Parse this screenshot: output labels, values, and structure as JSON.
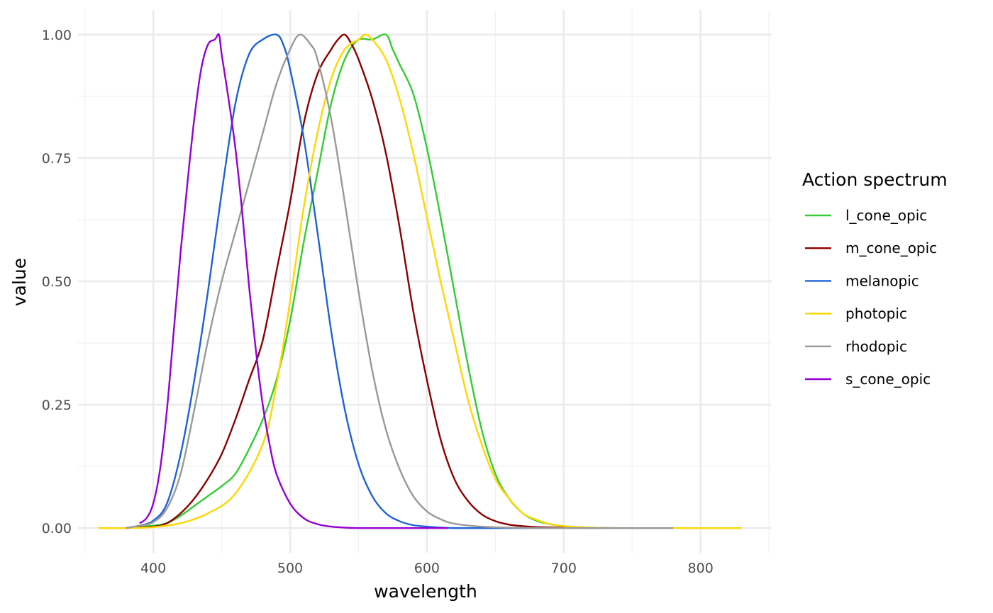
{
  "chart_data": {
    "type": "line",
    "xlabel": "wavelength",
    "ylabel": "value",
    "xlim": [
      345,
      852
    ],
    "ylim": [
      -0.05,
      1.05
    ],
    "x_ticks": [
      400,
      500,
      600,
      700,
      800
    ],
    "x_tick_labels": [
      "400",
      "500",
      "600",
      "700",
      "800"
    ],
    "y_ticks": [
      0,
      0.25,
      0.5,
      0.75,
      1
    ],
    "y_tick_labels": [
      "0.00",
      "0.25",
      "0.50",
      "0.75",
      "1.00"
    ],
    "grid": true,
    "legend": {
      "title": "Action spectrum",
      "position": "right"
    },
    "series": [
      {
        "name": "l_cone_opic",
        "color": "#32cd32",
        "x": [
          380,
          400,
          410,
          420,
          430,
          440,
          450,
          460,
          470,
          480,
          490,
          500,
          510,
          520,
          530,
          540,
          550,
          560,
          570,
          575,
          580,
          590,
          600,
          610,
          620,
          630,
          640,
          650,
          660,
          670,
          680,
          690,
          700,
          720,
          740,
          760,
          780
        ],
        "y": [
          0.0,
          0.005,
          0.01,
          0.025,
          0.045,
          0.065,
          0.085,
          0.11,
          0.16,
          0.22,
          0.3,
          0.42,
          0.58,
          0.72,
          0.86,
          0.95,
          0.99,
          0.99,
          1.0,
          0.97,
          0.94,
          0.88,
          0.77,
          0.63,
          0.48,
          0.33,
          0.2,
          0.11,
          0.06,
          0.03,
          0.015,
          0.008,
          0.004,
          0.001,
          0.0,
          0.0,
          0.0
        ]
      },
      {
        "name": "m_cone_opic",
        "color": "#8b0000",
        "x": [
          380,
          400,
          410,
          420,
          430,
          440,
          450,
          460,
          470,
          480,
          490,
          500,
          510,
          520,
          530,
          535,
          540,
          545,
          550,
          560,
          570,
          580,
          590,
          600,
          610,
          620,
          630,
          640,
          650,
          660,
          670,
          680,
          700,
          720,
          740,
          760,
          780
        ],
        "y": [
          0.0,
          0.003,
          0.01,
          0.03,
          0.06,
          0.1,
          0.15,
          0.22,
          0.3,
          0.38,
          0.52,
          0.66,
          0.82,
          0.92,
          0.97,
          0.99,
          1.0,
          0.98,
          0.95,
          0.87,
          0.76,
          0.61,
          0.44,
          0.3,
          0.18,
          0.1,
          0.055,
          0.028,
          0.014,
          0.007,
          0.004,
          0.002,
          0.001,
          0.0,
          0.0,
          0.0,
          0.0
        ]
      },
      {
        "name": "melanopic",
        "color": "#1f62d6",
        "x": [
          380,
          390,
          400,
          410,
          420,
          430,
          440,
          450,
          460,
          470,
          480,
          490,
          495,
          500,
          510,
          520,
          530,
          540,
          550,
          560,
          570,
          580,
          590,
          600,
          610,
          620,
          640,
          660,
          680,
          700,
          720,
          740,
          760,
          780
        ],
        "y": [
          0.0,
          0.005,
          0.015,
          0.05,
          0.15,
          0.3,
          0.48,
          0.68,
          0.86,
          0.96,
          0.99,
          1.0,
          0.98,
          0.93,
          0.79,
          0.6,
          0.4,
          0.24,
          0.13,
          0.065,
          0.03,
          0.014,
          0.006,
          0.003,
          0.001,
          0.0,
          0.0,
          0.0,
          0.0,
          0.0,
          0.0,
          0.0,
          0.0,
          0.0
        ]
      },
      {
        "name": "photopic",
        "color": "#ffd700",
        "x": [
          360,
          380,
          400,
          420,
          440,
          460,
          480,
          490,
          500,
          510,
          520,
          530,
          540,
          550,
          555,
          560,
          570,
          580,
          590,
          600,
          610,
          620,
          630,
          640,
          650,
          660,
          670,
          680,
          690,
          700,
          720,
          740,
          760,
          780,
          800,
          830
        ],
        "y": [
          0.0,
          0.0,
          0.002,
          0.01,
          0.03,
          0.07,
          0.17,
          0.29,
          0.46,
          0.65,
          0.8,
          0.91,
          0.97,
          0.99,
          1.0,
          0.99,
          0.95,
          0.87,
          0.76,
          0.63,
          0.5,
          0.38,
          0.26,
          0.17,
          0.1,
          0.06,
          0.03,
          0.017,
          0.008,
          0.004,
          0.001,
          0.0,
          0.0,
          0.0,
          0.0,
          0.0
        ]
      },
      {
        "name": "rhodopic",
        "color": "#999999",
        "x": [
          380,
          390,
          400,
          410,
          420,
          430,
          440,
          450,
          460,
          470,
          480,
          490,
          500,
          507,
          515,
          520,
          530,
          540,
          550,
          560,
          570,
          580,
          590,
          600,
          610,
          620,
          640,
          660,
          680,
          700,
          720,
          740,
          760,
          780
        ],
        "y": [
          0.0,
          0.005,
          0.012,
          0.04,
          0.11,
          0.24,
          0.38,
          0.5,
          0.6,
          0.7,
          0.8,
          0.9,
          0.97,
          1.0,
          0.98,
          0.95,
          0.83,
          0.66,
          0.48,
          0.32,
          0.2,
          0.12,
          0.065,
          0.034,
          0.018,
          0.009,
          0.003,
          0.001,
          0.0,
          0.0,
          0.0,
          0.0,
          0.0,
          0.0
        ]
      },
      {
        "name": "s_cone_opic",
        "color": "#9400d3",
        "x": [
          390,
          395,
          400,
          405,
          410,
          415,
          420,
          425,
          430,
          435,
          440,
          445,
          448,
          450,
          455,
          460,
          465,
          470,
          475,
          480,
          485,
          490,
          500,
          510,
          520,
          530,
          540,
          550,
          560,
          580,
          600,
          615
        ],
        "y": [
          0.01,
          0.02,
          0.05,
          0.12,
          0.24,
          0.4,
          0.56,
          0.7,
          0.83,
          0.93,
          0.98,
          0.99,
          1.0,
          0.96,
          0.87,
          0.77,
          0.64,
          0.49,
          0.36,
          0.25,
          0.17,
          0.11,
          0.05,
          0.02,
          0.008,
          0.003,
          0.001,
          0.0,
          0.0,
          0.0,
          0.0,
          0.0
        ]
      }
    ]
  }
}
